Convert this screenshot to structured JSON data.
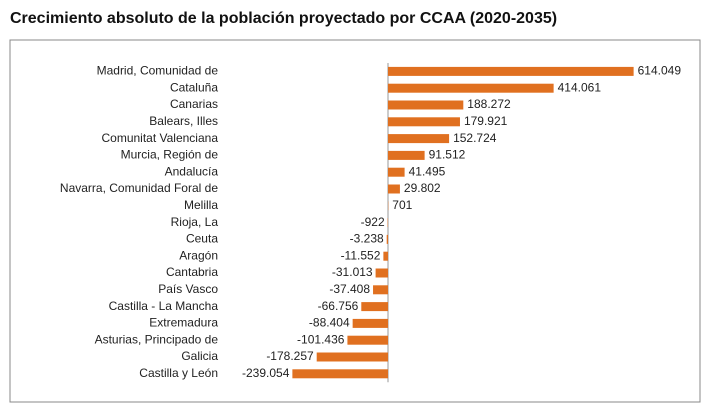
{
  "chart_data": {
    "type": "bar",
    "orientation": "horizontal",
    "title": "Crecimiento absoluto de la población proyectado por CCAA (2020-2035)",
    "categories": [
      "Madrid, Comunidad de",
      "Cataluña",
      "Canarias",
      "Balears, Illes",
      "Comunitat Valenciana",
      "Murcia, Región de",
      "Andalucía",
      "Navarra, Comunidad Foral de",
      "Melilla",
      "Rioja, La",
      "Ceuta",
      "Aragón",
      "Cantabria",
      "País Vasco",
      "Castilla - La Mancha",
      "Extremadura",
      "Asturias, Principado de",
      "Galicia",
      "Castilla y León"
    ],
    "values": [
      614049,
      414061,
      188272,
      179921,
      152724,
      91512,
      41495,
      29802,
      701,
      -922,
      -3238,
      -11552,
      -31013,
      -37408,
      -66756,
      -88404,
      -101436,
      -178257,
      -239054
    ],
    "value_labels": [
      "614.049",
      "414.061",
      "188.272",
      "179.921",
      "152.724",
      "91.512",
      "41.495",
      "29.802",
      "701",
      "-922",
      "-3.238",
      "-11.552",
      "-31.013",
      "-37.408",
      "-66.756",
      "-88.404",
      "-101.436",
      "-178.257",
      "-239.054"
    ],
    "color": "#e07020",
    "xlim": [
      -400000,
      800000
    ]
  }
}
